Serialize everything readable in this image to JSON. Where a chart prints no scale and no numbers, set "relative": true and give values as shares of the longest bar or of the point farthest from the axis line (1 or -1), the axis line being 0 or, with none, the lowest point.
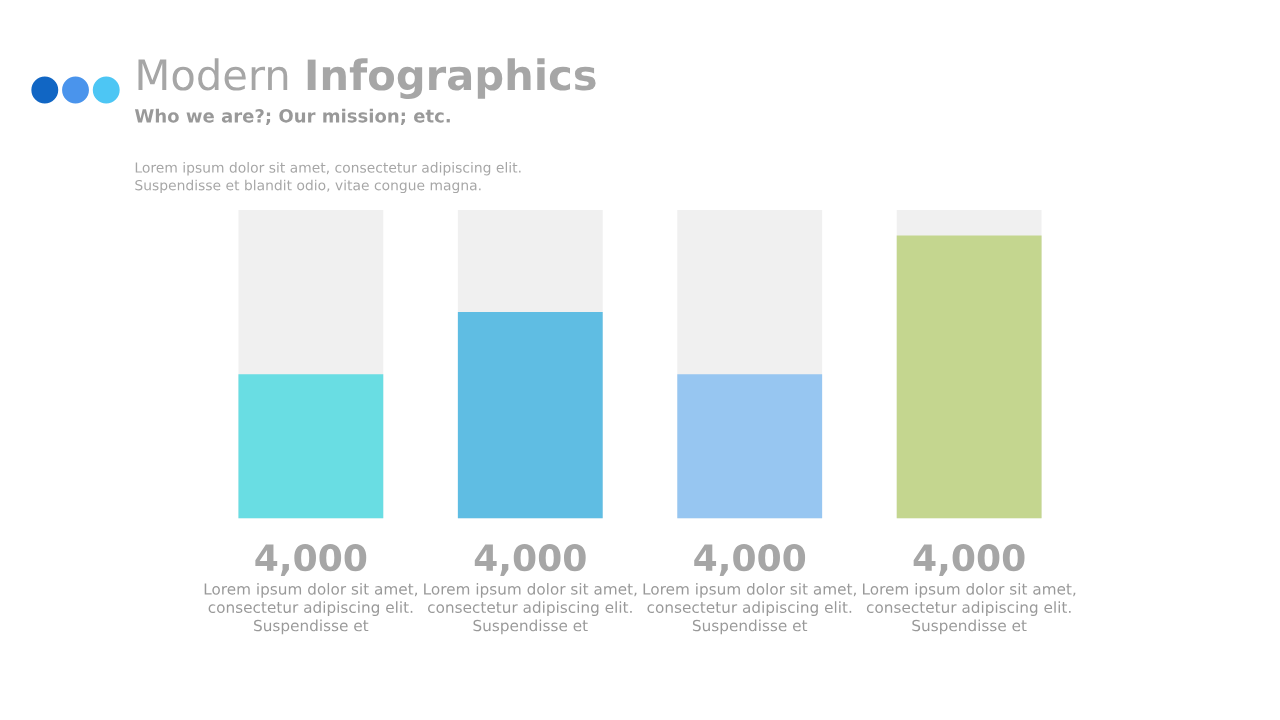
{
  "chart_data": {
    "type": "bar",
    "title": "Modern Infographics",
    "subtitle": "Who we are?; Our mission; etc.",
    "annotations": [
      "Lorem ipsum dolor sit amet, consectetur adipiscing elit.\nSuspendisse et blandit odio, vitae congue magna.",
      "4,000",
      "4,000",
      "4,000",
      "4,000"
    ],
    "relative": true,
    "categories": [
      "Lorem ipsum dolor sit amet,\nconsectetur adipiscing elit.\nSuspendisse et",
      "Lorem ipsum dolor sit amet,\nconsectetur adipiscing elit.\nSuspendisse et",
      "Lorem ipsum dolor sit amet,\nconsectetur adipiscing elit.\nSuspendisse et",
      "Lorem ipsum dolor sit amet,\nconsectetur adipiscing elit.\nSuspendisse et"
    ],
    "values": [
      0.51,
      0.73,
      0.51,
      1
    ],
    "colors": [
      "#69dde3",
      "#5fbde3",
      "#97c6f1",
      "#c4d68f"
    ]
  }
}
